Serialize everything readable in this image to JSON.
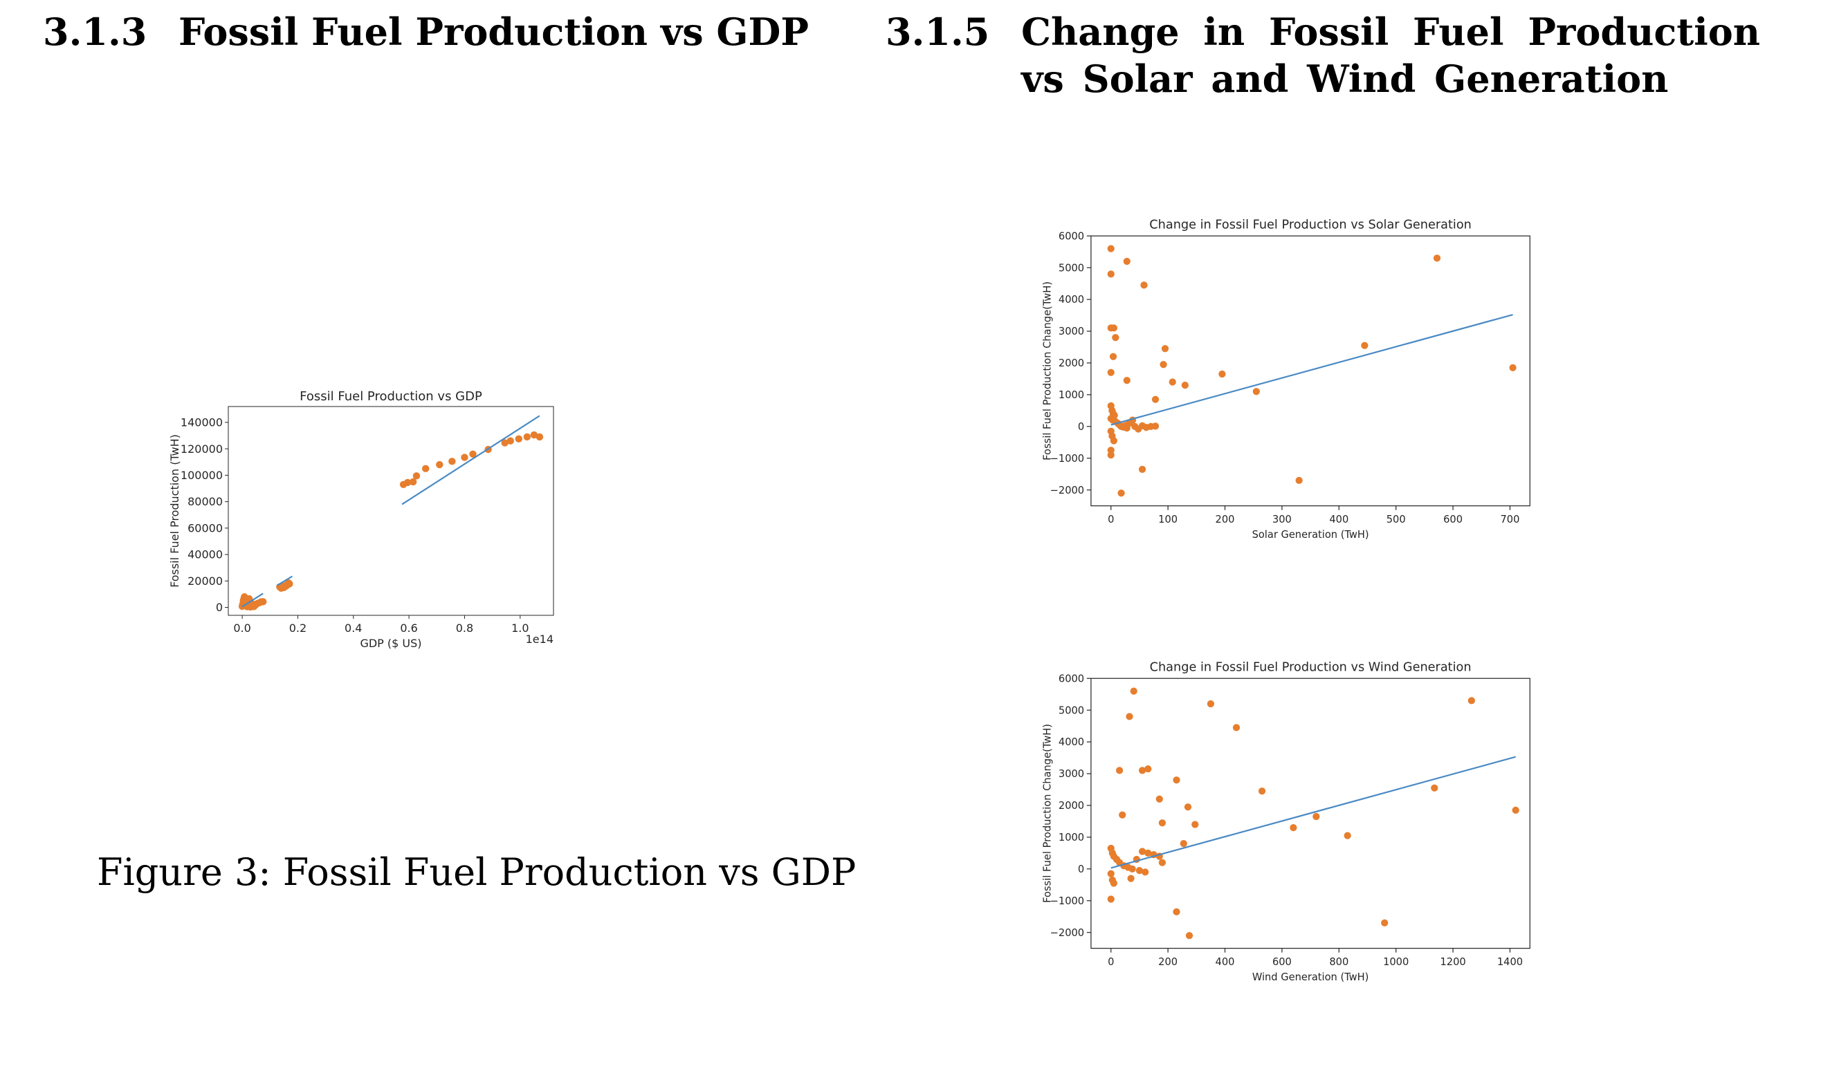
{
  "sections": [
    {
      "number": "3.1.3",
      "title_lines": [
        "Fossil Fuel Production vs GDP"
      ]
    },
    {
      "number": "3.1.5",
      "title_lines": [
        "Change in Fossil Fuel Production",
        "vs Solar and Wind Generation"
      ]
    }
  ],
  "caption": "Figure 3: Fossil Fuel Production vs GDP",
  "colors": {
    "points": "#e67e2e",
    "fit_line": "#4a8ac4",
    "axes": "#262626"
  },
  "chart_data": [
    {
      "id": "gdp",
      "type": "scatter",
      "title": "Fossil Fuel Production vs GDP",
      "xlabel": "GDP ($ US)",
      "ylabel": "Fossil Fuel Production (TwH)",
      "x_offset_text": "1e14",
      "xlim": [
        -0.05,
        1.12
      ],
      "ylim": [
        -6000,
        152000
      ],
      "xticks": [
        0.0,
        0.2,
        0.4,
        0.6,
        0.8,
        1.0
      ],
      "xtick_labels": [
        "0.0",
        "0.2",
        "0.4",
        "0.6",
        "0.8",
        "1.0"
      ],
      "yticks": [
        0,
        20000,
        40000,
        60000,
        80000,
        100000,
        120000,
        140000
      ],
      "ytick_labels": [
        "0",
        "20000",
        "40000",
        "60000",
        "80000",
        "100000",
        "120000",
        "140000"
      ],
      "points": [
        [
          0.0,
          800
        ],
        [
          0.002,
          2500
        ],
        [
          0.004,
          5000
        ],
        [
          0.006,
          6500
        ],
        [
          0.008,
          8000
        ],
        [
          0.012,
          3000
        ],
        [
          0.015,
          1200
        ],
        [
          0.018,
          500
        ],
        [
          0.022,
          2000
        ],
        [
          0.025,
          6500
        ],
        [
          0.028,
          1000
        ],
        [
          0.03,
          300
        ],
        [
          0.034,
          1500
        ],
        [
          0.038,
          2500
        ],
        [
          0.042,
          600
        ],
        [
          0.048,
          1800
        ],
        [
          0.055,
          3000
        ],
        [
          0.062,
          3500
        ],
        [
          0.068,
          4200
        ],
        [
          0.075,
          4300
        ],
        [
          0.135,
          15500
        ],
        [
          0.14,
          14500
        ],
        [
          0.145,
          16500
        ],
        [
          0.15,
          15000
        ],
        [
          0.155,
          15800
        ],
        [
          0.16,
          16500
        ],
        [
          0.163,
          17500
        ],
        [
          0.167,
          18500
        ],
        [
          0.17,
          17800
        ],
        [
          0.58,
          93000
        ],
        [
          0.595,
          94500
        ],
        [
          0.615,
          95000
        ],
        [
          0.627,
          99500
        ],
        [
          0.66,
          105000
        ],
        [
          0.71,
          108000
        ],
        [
          0.755,
          110500
        ],
        [
          0.8,
          113500
        ],
        [
          0.83,
          116000
        ],
        [
          0.885,
          119500
        ],
        [
          0.945,
          124500
        ],
        [
          0.965,
          126000
        ],
        [
          0.995,
          127500
        ],
        [
          1.025,
          129000
        ],
        [
          1.05,
          130500
        ],
        [
          1.07,
          129000
        ]
      ],
      "fit_segments": [
        [
          [
            0.0,
            500
          ],
          [
            0.075,
            10500
          ]
        ],
        [
          [
            0.125,
            16500
          ],
          [
            0.18,
            23500
          ]
        ],
        [
          [
            0.575,
            78000
          ],
          [
            1.07,
            145000
          ]
        ]
      ]
    },
    {
      "id": "solar",
      "type": "scatter",
      "title": "Change in Fossil Fuel Production vs Solar Generation",
      "xlabel": "Solar Generation (TwH)",
      "ylabel": "Fossil Fuel Production Change(TwH)",
      "xlim": [
        -35,
        735
      ],
      "ylim": [
        -2500,
        6000
      ],
      "xticks": [
        0,
        100,
        200,
        300,
        400,
        500,
        600,
        700
      ],
      "xtick_labels": [
        "0",
        "100",
        "200",
        "300",
        "400",
        "500",
        "600",
        "700"
      ],
      "yticks": [
        -2000,
        -1000,
        0,
        1000,
        2000,
        3000,
        4000,
        5000,
        6000
      ],
      "ytick_labels": [
        "−2000",
        "−1000",
        "0",
        "1000",
        "2000",
        "3000",
        "4000",
        "5000",
        "6000"
      ],
      "points": [
        [
          0,
          5600
        ],
        [
          0,
          4800
        ],
        [
          28,
          5200
        ],
        [
          58,
          4450
        ],
        [
          0,
          3100
        ],
        [
          5,
          3100
        ],
        [
          8,
          2800
        ],
        [
          4,
          2200
        ],
        [
          0,
          1700
        ],
        [
          28,
          1450
        ],
        [
          95,
          2450
        ],
        [
          92,
          1950
        ],
        [
          108,
          1400
        ],
        [
          130,
          1300
        ],
        [
          195,
          1650
        ],
        [
          78,
          850
        ],
        [
          255,
          1100
        ],
        [
          445,
          2550
        ],
        [
          572,
          5300
        ],
        [
          705,
          1850
        ],
        [
          0,
          650
        ],
        [
          2,
          500
        ],
        [
          4,
          400
        ],
        [
          6,
          350
        ],
        [
          0,
          250
        ],
        [
          3,
          200
        ],
        [
          8,
          150
        ],
        [
          12,
          100
        ],
        [
          15,
          50
        ],
        [
          18,
          0
        ],
        [
          22,
          -20
        ],
        [
          25,
          30
        ],
        [
          28,
          -50
        ],
        [
          32,
          100
        ],
        [
          38,
          200
        ],
        [
          42,
          0
        ],
        [
          48,
          -80
        ],
        [
          55,
          20
        ],
        [
          62,
          -30
        ],
        [
          70,
          0
        ],
        [
          78,
          10
        ],
        [
          0,
          -150
        ],
        [
          2,
          -300
        ],
        [
          5,
          -450
        ],
        [
          0,
          -750
        ],
        [
          0,
          -900
        ],
        [
          55,
          -1350
        ],
        [
          18,
          -2100
        ],
        [
          330,
          -1700
        ]
      ],
      "fit_segments": [
        [
          [
            0,
            50
          ],
          [
            705,
            3520
          ]
        ]
      ]
    },
    {
      "id": "wind",
      "type": "scatter",
      "title": "Change in Fossil Fuel Production vs Wind Generation",
      "xlabel": "Wind Generation (TwH)",
      "ylabel": "Fossil Fuel Production Change(TwH)",
      "xlim": [
        -70,
        1470
      ],
      "ylim": [
        -2500,
        6000
      ],
      "xticks": [
        0,
        200,
        400,
        600,
        800,
        1000,
        1200,
        1400
      ],
      "xtick_labels": [
        "0",
        "200",
        "400",
        "600",
        "800",
        "1000",
        "1200",
        "1400"
      ],
      "yticks": [
        -2000,
        -1000,
        0,
        1000,
        2000,
        3000,
        4000,
        5000,
        6000
      ],
      "ytick_labels": [
        "−2000",
        "−1000",
        "0",
        "1000",
        "2000",
        "3000",
        "4000",
        "5000",
        "6000"
      ],
      "points": [
        [
          80,
          5600
        ],
        [
          65,
          4800
        ],
        [
          350,
          5200
        ],
        [
          440,
          4450
        ],
        [
          1265,
          5300
        ],
        [
          30,
          3100
        ],
        [
          110,
          3100
        ],
        [
          130,
          3150
        ],
        [
          230,
          2800
        ],
        [
          170,
          2200
        ],
        [
          270,
          1950
        ],
        [
          530,
          2450
        ],
        [
          1135,
          2550
        ],
        [
          40,
          1700
        ],
        [
          180,
          1450
        ],
        [
          295,
          1400
        ],
        [
          720,
          1650
        ],
        [
          640,
          1300
        ],
        [
          830,
          1050
        ],
        [
          1420,
          1850
        ],
        [
          255,
          800
        ],
        [
          0,
          650
        ],
        [
          5,
          500
        ],
        [
          10,
          400
        ],
        [
          20,
          300
        ],
        [
          30,
          200
        ],
        [
          45,
          100
        ],
        [
          60,
          50
        ],
        [
          75,
          0
        ],
        [
          90,
          300
        ],
        [
          110,
          550
        ],
        [
          130,
          500
        ],
        [
          150,
          450
        ],
        [
          170,
          400
        ],
        [
          180,
          200
        ],
        [
          100,
          -50
        ],
        [
          120,
          -100
        ],
        [
          70,
          -300
        ],
        [
          0,
          -150
        ],
        [
          5,
          -350
        ],
        [
          10,
          -450
        ],
        [
          0,
          -950
        ],
        [
          230,
          -1350
        ],
        [
          275,
          -2100
        ],
        [
          960,
          -1700
        ]
      ],
      "fit_segments": [
        [
          [
            0,
            30
          ],
          [
            1420,
            3530
          ]
        ]
      ]
    }
  ]
}
